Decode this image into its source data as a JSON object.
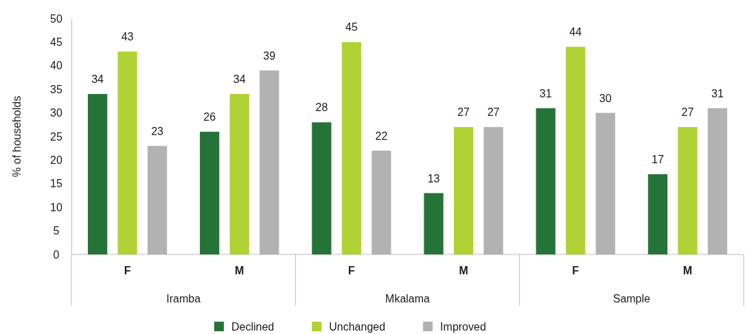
{
  "chart_data": {
    "type": "bar",
    "ylabel": "% of households",
    "categories": [
      "F",
      "M",
      "F",
      "M",
      "F",
      "M"
    ],
    "series": [
      {
        "name": "Declined",
        "color": "#267339",
        "values": [
          34,
          26,
          28,
          13,
          31,
          17
        ]
      },
      {
        "name": "Unchanged",
        "color": "#b0d235",
        "values": [
          43,
          34,
          45,
          27,
          44,
          27
        ]
      },
      {
        "name": "Improved",
        "color": "#b2b2b2",
        "values": [
          23,
          39,
          22,
          27,
          30,
          31
        ]
      }
    ],
    "annotations": [
      "Iramba",
      "Mkalama",
      "Sample"
    ],
    "ylim": [
      0,
      50
    ],
    "yticks": [
      0,
      5,
      10,
      15,
      20,
      25,
      30,
      35,
      40,
      45,
      50
    ],
    "data_labels": true,
    "legend": "bottom",
    "grid": false
  }
}
